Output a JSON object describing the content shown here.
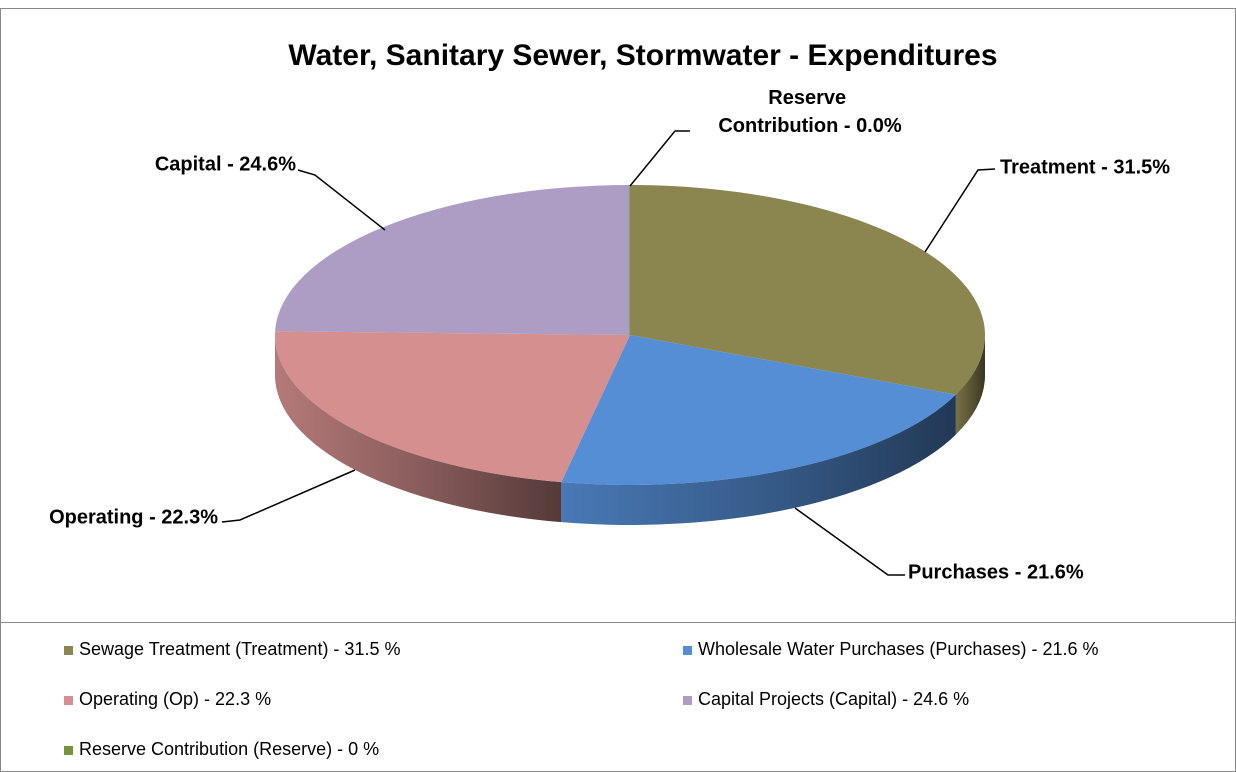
{
  "chart_data": {
    "type": "pie",
    "title": "Water, Sanitary Sewer, Stormwater - Expenditures",
    "categories": [
      "Sewage Treatment (Treatment) - 31.5 %",
      "Wholesale Water Purchases (Purchases) - 21.6 %",
      "Operating (Op) - 22.3 %",
      "Capital Projects (Capital) - 24.6 %",
      "Reserve Contribution (Reserve) - 0 %"
    ],
    "values": [
      31.5,
      21.6,
      22.3,
      24.6,
      0
    ],
    "value_labels": [
      "Treatment - 31.5%",
      "Purchases - 21.6%",
      "Operating - 22.3%",
      "Capital - 24.6%",
      "Reserve Contribution - 0.0%"
    ],
    "colors": [
      "#8b8550",
      "#558ed5",
      "#d48f8e",
      "#ad9cc4",
      "#77933c"
    ],
    "legend": "bottom"
  }
}
